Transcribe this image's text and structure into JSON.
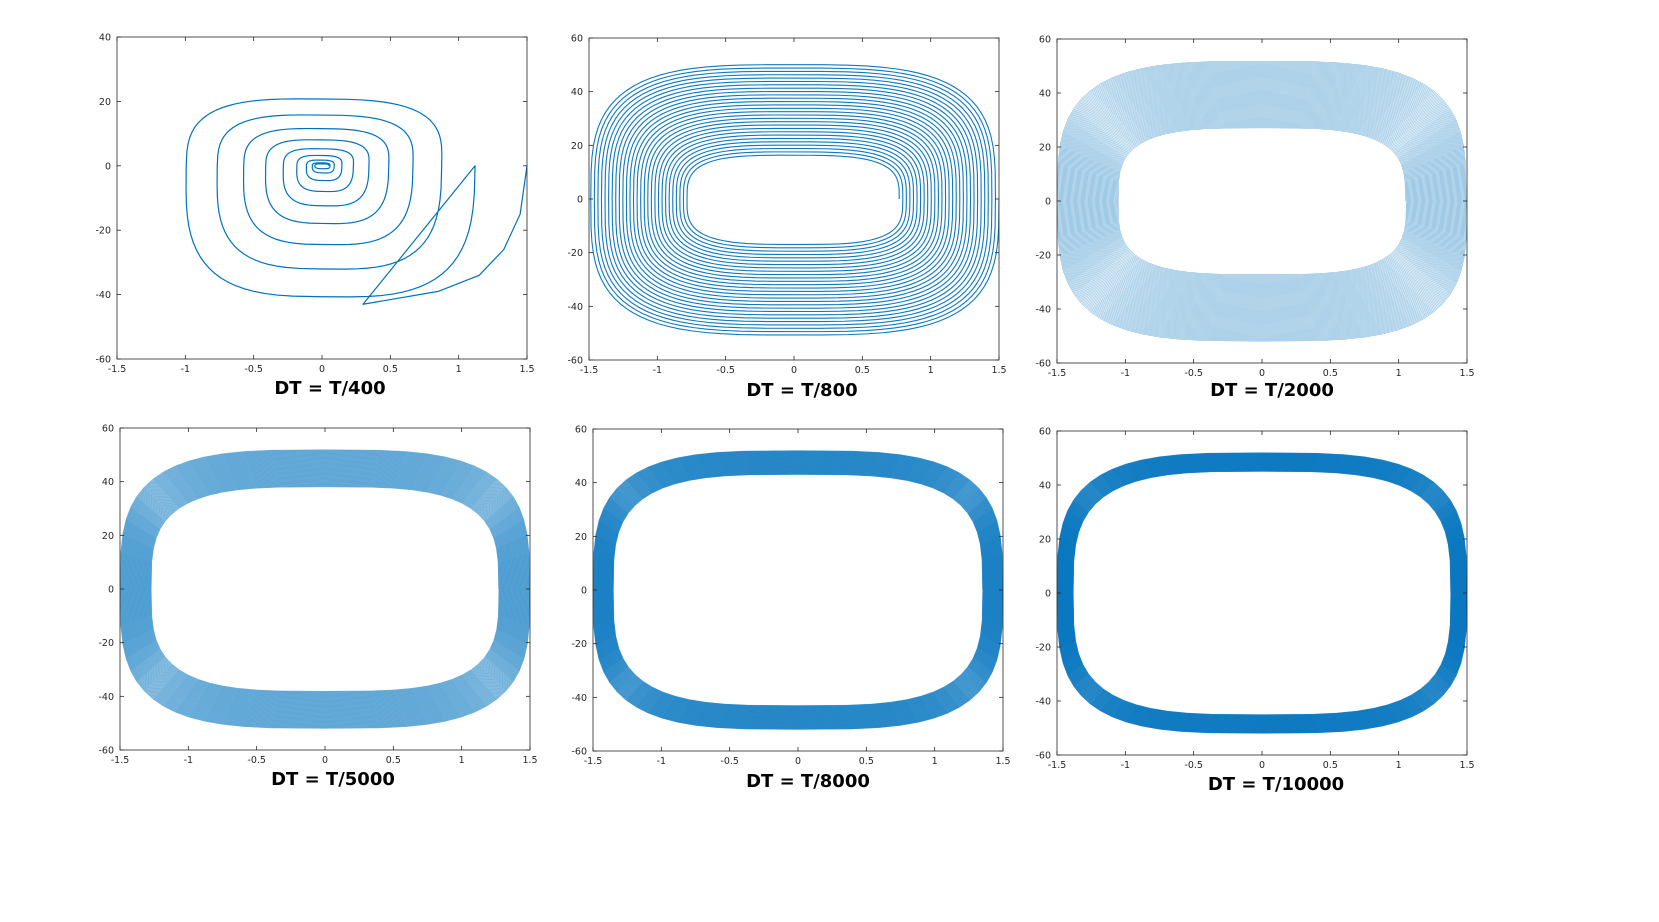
{
  "figure": {
    "line_color": "#0072BD",
    "axis_color": "#262626"
  },
  "chart_data": [
    {
      "type": "line",
      "caption": "DT = T/400",
      "xlim": [
        -1.5,
        1.5
      ],
      "ylim": [
        -60,
        40
      ],
      "xticks": [
        -1.5,
        -1,
        -0.5,
        0,
        0.5,
        1,
        1.5
      ],
      "yticks": [
        -60,
        -40,
        -20,
        0,
        20,
        40
      ],
      "xtick_labels": [
        "-1.5",
        "-1",
        "-0.5",
        "0",
        "0.5",
        "1",
        "1.5"
      ],
      "ytick_labels": [
        "-60",
        "-40",
        "-20",
        "0",
        "20",
        "40"
      ],
      "grid": false,
      "trajectory": {
        "shape": "outward-spiral",
        "x_start": 0.05,
        "y_start": 0.6,
        "x_end": 1.5,
        "y_end": 0,
        "outer_y_top": 25,
        "outer_y_bottom": -43,
        "turns": 9
      },
      "series": [
        {
          "values_shape": "spiral"
        }
      ]
    },
    {
      "type": "line",
      "caption": "DT = T/800",
      "xlim": [
        -1.5,
        1.5
      ],
      "ylim": [
        -60,
        60
      ],
      "xticks": [
        -1.5,
        -1,
        -0.5,
        0,
        0.5,
        1,
        1.5
      ],
      "yticks": [
        -60,
        -40,
        -20,
        0,
        20,
        40,
        60
      ],
      "xtick_labels": [
        "-1.5",
        "-1",
        "-0.5",
        "0",
        "0.5",
        "1",
        "1.5"
      ],
      "ytick_labels": [
        "-60",
        "-40",
        "-20",
        "0",
        "20",
        "40",
        "60"
      ],
      "grid": false,
      "trajectory": {
        "shape": "spiral-band",
        "inner_x": 0.77,
        "outer_x": 1.5,
        "inner_y": 16,
        "outer_y": 51,
        "turns": 28
      },
      "series": [
        {
          "values_shape": "spiral"
        }
      ]
    },
    {
      "type": "line",
      "caption": "DT = T/2000",
      "xlim": [
        -1.5,
        1.5
      ],
      "ylim": [
        -60,
        60
      ],
      "xticks": [
        -1.5,
        -1,
        -0.5,
        0,
        0.5,
        1,
        1.5
      ],
      "yticks": [
        -60,
        -40,
        -20,
        0,
        20,
        40,
        60
      ],
      "xtick_labels": [
        "-1.5",
        "-1",
        "-0.5",
        "0",
        "0.5",
        "1",
        "1.5"
      ],
      "ytick_labels": [
        "-60",
        "-40",
        "-20",
        "0",
        "20",
        "40",
        "60"
      ],
      "grid": false,
      "trajectory": {
        "shape": "spiral-band",
        "inner_x": 1.05,
        "outer_x": 1.5,
        "inner_y": 27,
        "outer_y": 52,
        "turns": 70
      },
      "series": [
        {
          "values_shape": "spiral"
        }
      ]
    },
    {
      "type": "line",
      "caption": "DT = T/5000",
      "xlim": [
        -1.5,
        1.5
      ],
      "ylim": [
        -60,
        60
      ],
      "xticks": [
        -1.5,
        -1,
        -0.5,
        0,
        0.5,
        1,
        1.5
      ],
      "yticks": [
        -60,
        -40,
        -20,
        0,
        20,
        40,
        60
      ],
      "xtick_labels": [
        "-1.5",
        "-1",
        "-0.5",
        "0",
        "0.5",
        "1",
        "1.5"
      ],
      "ytick_labels": [
        "-60",
        "-40",
        "-20",
        "0",
        "20",
        "40",
        "60"
      ],
      "grid": false,
      "trajectory": {
        "shape": "spiral-band",
        "inner_x": 1.27,
        "outer_x": 1.5,
        "inner_y": 38,
        "outer_y": 52,
        "turns": 120
      },
      "series": [
        {
          "values_shape": "spiral"
        }
      ]
    },
    {
      "type": "line",
      "caption": "DT = T/8000",
      "xlim": [
        -1.5,
        1.5
      ],
      "ylim": [
        -60,
        60
      ],
      "xticks": [
        -1.5,
        -1,
        -0.5,
        0,
        0.5,
        1,
        1.5
      ],
      "yticks": [
        -60,
        -40,
        -20,
        0,
        20,
        40,
        60
      ],
      "xtick_labels": [
        "-1.5",
        "-1",
        "-0.5",
        "0",
        "0.5",
        "1",
        "1.5"
      ],
      "ytick_labels": [
        "-60",
        "-40",
        "-20",
        "0",
        "20",
        "40",
        "60"
      ],
      "grid": false,
      "trajectory": {
        "shape": "spiral-band",
        "inner_x": 1.35,
        "outer_x": 1.5,
        "inner_y": 43,
        "outer_y": 52,
        "turns": 150
      },
      "series": [
        {
          "values_shape": "spiral"
        }
      ]
    },
    {
      "type": "line",
      "caption": "DT = T/10000",
      "xlim": [
        -1.5,
        1.5
      ],
      "ylim": [
        -60,
        60
      ],
      "xticks": [
        -1.5,
        -1,
        -0.5,
        0,
        0.5,
        1,
        1.5
      ],
      "yticks": [
        -60,
        -40,
        -20,
        0,
        20,
        40,
        60
      ],
      "xtick_labels": [
        "-1.5",
        "-1",
        "-0.5",
        "0",
        "0.5",
        "1",
        "1.5"
      ],
      "ytick_labels": [
        "-60",
        "-40",
        "-20",
        "0",
        "20",
        "40",
        "60"
      ],
      "grid": false,
      "trajectory": {
        "shape": "spiral-band",
        "inner_x": 1.38,
        "outer_x": 1.5,
        "inner_y": 45,
        "outer_y": 52,
        "turns": 170
      },
      "series": [
        {
          "values_shape": "spiral"
        }
      ]
    }
  ]
}
